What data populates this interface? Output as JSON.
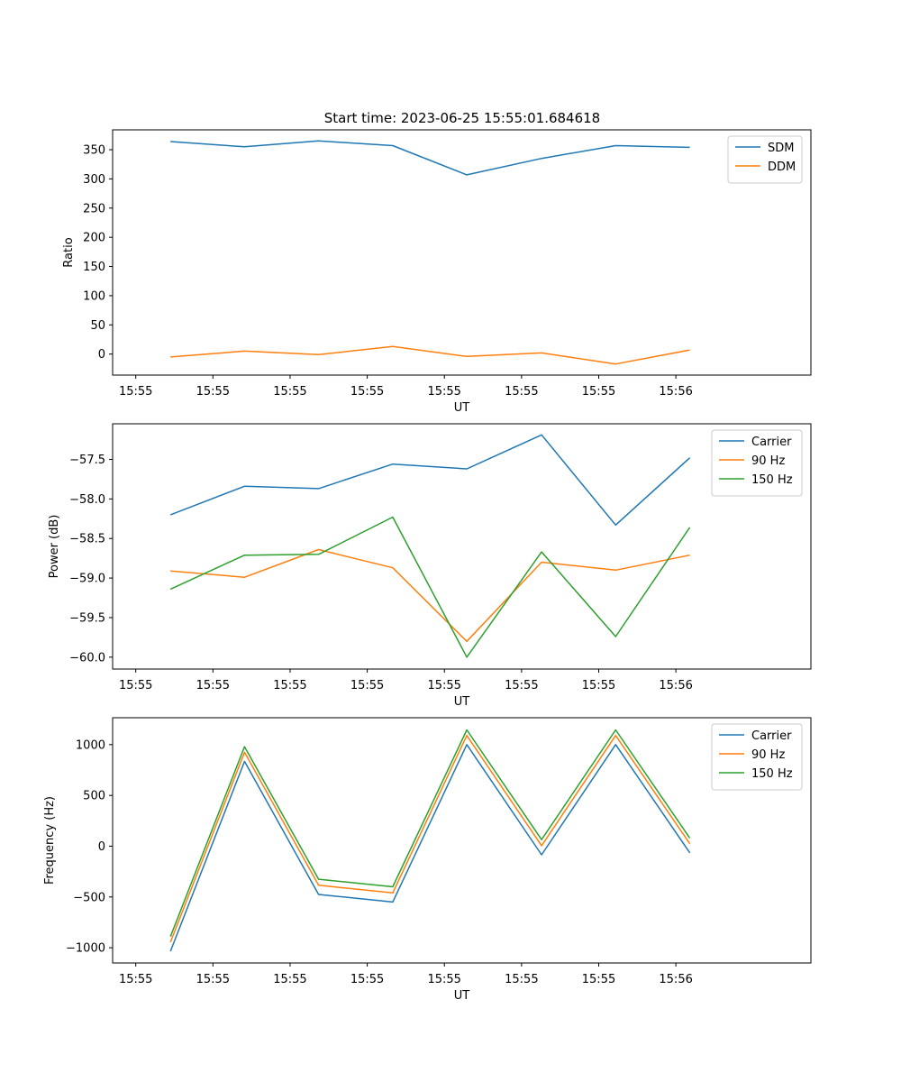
{
  "figure_title": "Start time: 2023-06-25 15:55:01.684618",
  "chart_data": [
    {
      "type": "line",
      "title": "Start time: 2023-06-25 15:55:01.684618",
      "xlabel": "UT",
      "ylabel": "Ratio",
      "x_tick_labels": [
        "15:55",
        "15:55",
        "15:55",
        "15:55",
        "15:55",
        "15:55",
        "15:55",
        "15:56"
      ],
      "xlim": [
        -0.3,
        8.75
      ],
      "y_ticks": [
        0,
        50,
        100,
        150,
        200,
        250,
        300,
        350
      ],
      "ylim": [
        -36,
        384
      ],
      "legend_position": "upper right",
      "grid": false,
      "series": [
        {
          "name": "SDM",
          "color": "#1f77b4",
          "x": [
            0.45,
            1.41,
            2.37,
            3.33,
            4.29,
            5.26,
            6.22,
            7.18
          ],
          "y": [
            364,
            355,
            365,
            357,
            307,
            335,
            357,
            354
          ]
        },
        {
          "name": "DDM",
          "color": "#ff7f0e",
          "x": [
            0.45,
            1.41,
            2.37,
            3.33,
            4.29,
            5.26,
            6.22,
            7.18
          ],
          "y": [
            -5,
            5,
            -1,
            13,
            -4,
            2,
            -17,
            7
          ]
        }
      ]
    },
    {
      "type": "line",
      "title": "",
      "xlabel": "UT",
      "ylabel": "Power (dB)",
      "x_tick_labels": [
        "15:55",
        "15:55",
        "15:55",
        "15:55",
        "15:55",
        "15:55",
        "15:55",
        "15:56"
      ],
      "xlim": [
        -0.3,
        8.75
      ],
      "y_ticks": [
        -60.0,
        -59.5,
        -59.0,
        -58.5,
        -58.0,
        -57.5
      ],
      "y_tick_labels": [
        "−60.0",
        "−59.5",
        "−59.0",
        "−58.5",
        "−58.0",
        "−57.5"
      ],
      "ylim": [
        -60.15,
        -57.05
      ],
      "legend_position": "upper right",
      "grid": false,
      "series": [
        {
          "name": "Carrier",
          "color": "#1f77b4",
          "x": [
            0.45,
            1.41,
            2.37,
            3.33,
            4.29,
            5.26,
            6.22,
            7.18
          ],
          "y": [
            -58.2,
            -57.84,
            -57.87,
            -57.56,
            -57.62,
            -57.19,
            -58.33,
            -57.48
          ]
        },
        {
          "name": "90 Hz",
          "color": "#ff7f0e",
          "x": [
            0.45,
            1.41,
            2.37,
            3.33,
            4.29,
            5.26,
            6.22,
            7.18
          ],
          "y": [
            -58.91,
            -58.99,
            -58.64,
            -58.87,
            -59.8,
            -58.8,
            -58.9,
            -58.71
          ]
        },
        {
          "name": "150 Hz",
          "color": "#2ca02c",
          "x": [
            0.45,
            1.41,
            2.37,
            3.33,
            4.29,
            5.26,
            6.22,
            7.18
          ],
          "y": [
            -59.14,
            -58.71,
            -58.7,
            -58.23,
            -60.0,
            -58.67,
            -59.74,
            -58.36
          ]
        }
      ]
    },
    {
      "type": "line",
      "title": "",
      "xlabel": "UT",
      "ylabel": "Frequency (Hz)",
      "x_tick_labels": [
        "15:55",
        "15:55",
        "15:55",
        "15:55",
        "15:55",
        "15:55",
        "15:55",
        "15:56"
      ],
      "xlim": [
        -0.3,
        8.75
      ],
      "y_ticks": [
        -1000,
        -500,
        0,
        500,
        1000
      ],
      "y_tick_labels": [
        "−1000",
        "−500",
        "0",
        "500",
        "1000"
      ],
      "ylim": [
        -1150,
        1265
      ],
      "legend_position": "upper right",
      "grid": false,
      "series": [
        {
          "name": "Carrier",
          "color": "#1f77b4",
          "x": [
            0.45,
            1.41,
            2.37,
            3.33,
            4.29,
            5.26,
            6.22,
            7.18
          ],
          "y": [
            -1035,
            835,
            -475,
            -550,
            1000,
            -85,
            1000,
            -65
          ]
        },
        {
          "name": "90 Hz",
          "color": "#ff7f0e",
          "x": [
            0.45,
            1.41,
            2.37,
            3.33,
            4.29,
            5.26,
            6.22,
            7.18
          ],
          "y": [
            -945,
            925,
            -385,
            -460,
            1090,
            5,
            1090,
            25
          ]
        },
        {
          "name": "150 Hz",
          "color": "#2ca02c",
          "x": [
            0.45,
            1.41,
            2.37,
            3.33,
            4.29,
            5.26,
            6.22,
            7.18
          ],
          "y": [
            -890,
            980,
            -325,
            -400,
            1145,
            65,
            1145,
            80
          ]
        }
      ]
    }
  ]
}
